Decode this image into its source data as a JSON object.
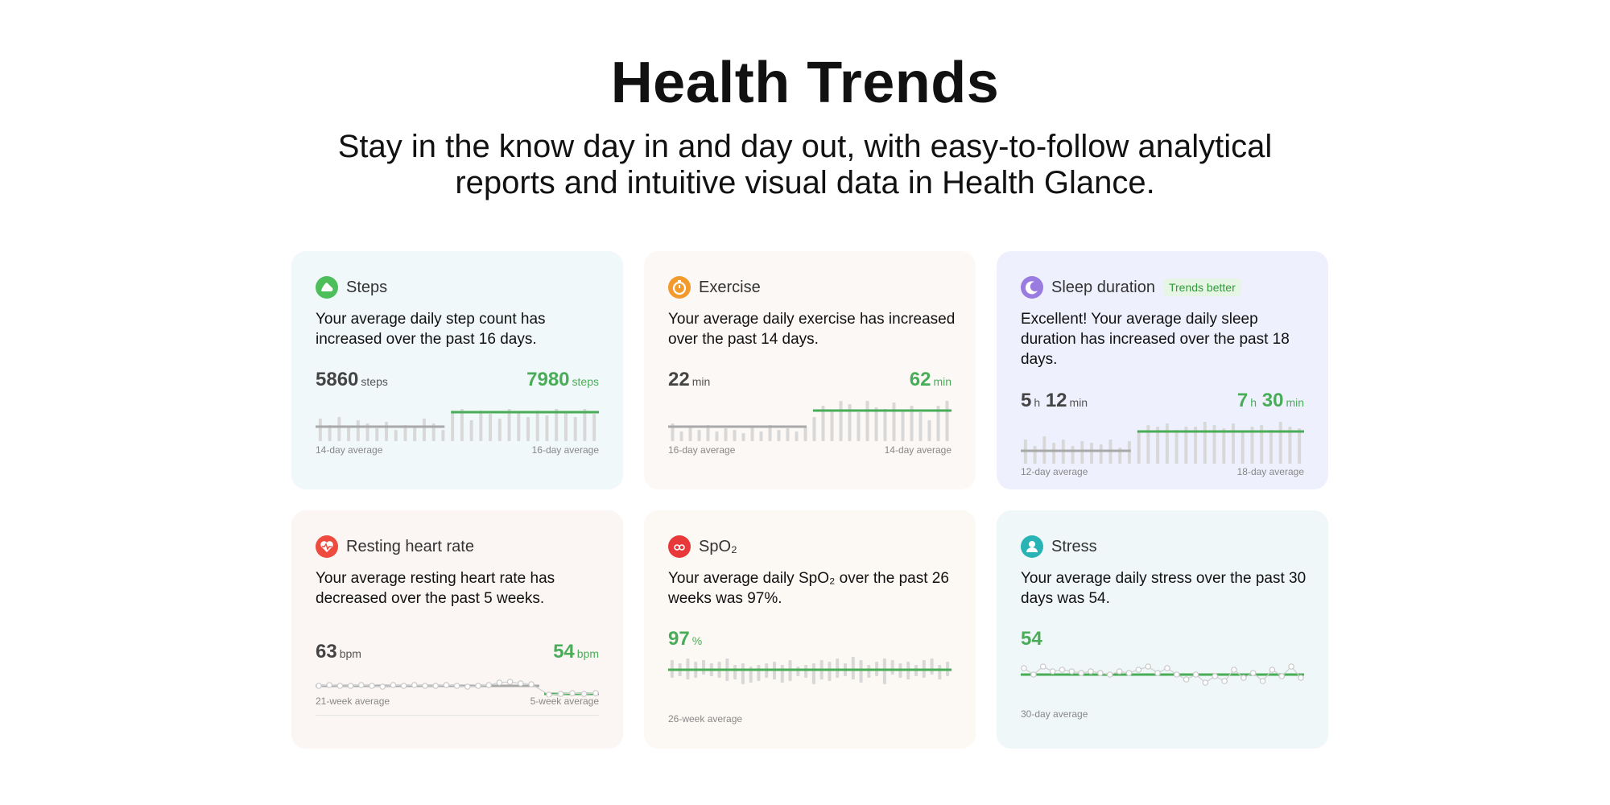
{
  "page": {
    "title": "Health Trends",
    "subtitle": "Stay in the know day in and day out, with easy-to-follow analytical reports and intuitive visual data in Health Glance."
  },
  "colors": {
    "accent_green": "#49ad58",
    "baseline_gray": "#a9a9a9",
    "bar_gray": "#d8d8d8"
  },
  "cards": {
    "steps": {
      "icon": "walking-shoe-icon",
      "icon_color": "#4cbf5b",
      "title": "Steps",
      "description": "Your average daily step count has increased over the past 16 days.",
      "left_value": "5860",
      "left_unit": "steps",
      "right_value": "7980",
      "right_unit": "steps",
      "left_caption": "14-day average",
      "right_caption": "16-day average"
    },
    "exercise": {
      "icon": "stopwatch-icon",
      "icon_color": "#f39a2d",
      "title": "Exercise",
      "description": "Your average daily exercise has increased over the past 14 days.",
      "left_value": "22",
      "left_unit": "min",
      "right_value": "62",
      "right_unit": "min",
      "left_caption": "16-day average",
      "right_caption": "14-day average"
    },
    "sleep": {
      "icon": "moon-icon",
      "icon_color": "#9a7be0",
      "title": "Sleep duration",
      "badge": "Trends better",
      "description": "Excellent!  Your average daily sleep duration has increased over the past 18 days.",
      "left_hours": "5",
      "left_minutes": "12",
      "right_hours": "7",
      "right_minutes": "30",
      "hour_unit": "h",
      "minute_unit": "min",
      "left_caption": "12-day average",
      "right_caption": "18-day average"
    },
    "heart": {
      "icon": "heart-pulse-icon",
      "icon_color": "#ee4a3d",
      "title": "Resting heart rate",
      "description": "Your average resting heart rate has decreased over the past 5 weeks.",
      "left_value": "63",
      "left_unit": "bpm",
      "right_value": "54",
      "right_unit": "bpm",
      "left_caption": "21-week average",
      "right_caption": "5-week average"
    },
    "spo2": {
      "icon": "blood-drop-icon",
      "icon_color": "#e8383a",
      "title": "SpO₂",
      "description": "Your average daily SpO₂ over the past 26 weeks was 97%.",
      "value": "97",
      "unit": "%",
      "caption": "26-week average"
    },
    "stress": {
      "icon": "person-icon",
      "icon_color": "#29b3b5",
      "title": "Stress",
      "description": "Your average daily stress over the past 30 days was 54.",
      "value": "54",
      "caption": "30-day average"
    }
  }
}
